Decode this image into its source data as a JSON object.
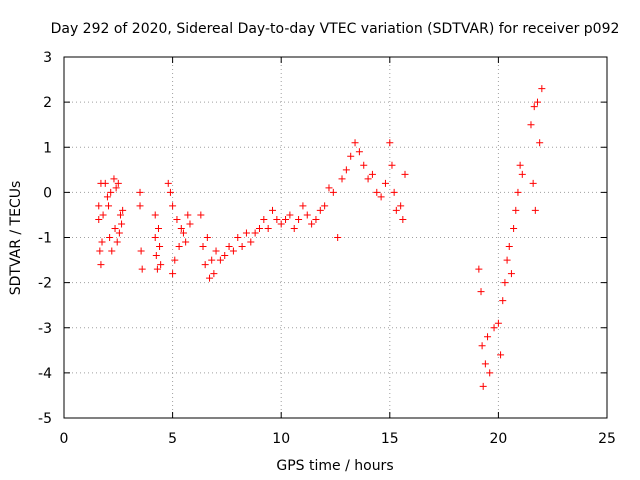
{
  "chart_data": {
    "type": "scatter",
    "title": "Day 292 of 2020, Sidereal Day-to-day VTEC variation (SDTVAR) for receiver p092",
    "xlabel": "GPS time / hours",
    "ylabel": "SDTVAR / TECUs",
    "xlim": [
      0,
      25
    ],
    "ylim": [
      -5,
      3
    ],
    "xticks": [
      0,
      5,
      10,
      15,
      20,
      25
    ],
    "yticks": [
      -5,
      -4,
      -3,
      -2,
      -1,
      0,
      1,
      2,
      3
    ],
    "grid": true,
    "marker": "+",
    "color": "#ff0000",
    "series": [
      {
        "name": "SDTVAR",
        "points": [
          [
            1.6,
            -0.3
          ],
          [
            1.6,
            -0.6
          ],
          [
            1.65,
            -1.3
          ],
          [
            1.7,
            -1.6
          ],
          [
            1.7,
            0.2
          ],
          [
            1.75,
            -1.1
          ],
          [
            1.8,
            -0.5
          ],
          [
            1.9,
            0.2
          ],
          [
            2.0,
            -0.1
          ],
          [
            2.05,
            -0.3
          ],
          [
            2.1,
            -1.0
          ],
          [
            2.15,
            0.0
          ],
          [
            2.2,
            -1.3
          ],
          [
            2.3,
            0.3
          ],
          [
            2.35,
            -0.8
          ],
          [
            2.4,
            0.1
          ],
          [
            2.45,
            -1.1
          ],
          [
            2.5,
            0.2
          ],
          [
            2.55,
            -0.9
          ],
          [
            2.6,
            -0.5
          ],
          [
            2.65,
            -0.7
          ],
          [
            2.7,
            -0.4
          ],
          [
            3.5,
            0.0
          ],
          [
            3.55,
            -1.3
          ],
          [
            3.6,
            -1.7
          ],
          [
            3.5,
            -0.3
          ],
          [
            4.2,
            -0.5
          ],
          [
            4.2,
            -1.0
          ],
          [
            4.25,
            -1.4
          ],
          [
            4.3,
            -1.7
          ],
          [
            4.35,
            -0.8
          ],
          [
            4.4,
            -1.2
          ],
          [
            4.45,
            -1.6
          ],
          [
            4.8,
            0.2
          ],
          [
            4.9,
            0.0
          ],
          [
            5.0,
            -0.3
          ],
          [
            5.0,
            -1.8
          ],
          [
            5.1,
            -1.5
          ],
          [
            5.2,
            -0.6
          ],
          [
            5.3,
            -1.2
          ],
          [
            5.4,
            -0.8
          ],
          [
            5.5,
            -0.9
          ],
          [
            5.6,
            -1.1
          ],
          [
            5.7,
            -0.5
          ],
          [
            5.8,
            -0.7
          ],
          [
            6.3,
            -0.5
          ],
          [
            6.4,
            -1.2
          ],
          [
            6.5,
            -1.6
          ],
          [
            6.6,
            -1.0
          ],
          [
            6.7,
            -1.9
          ],
          [
            6.8,
            -1.5
          ],
          [
            6.9,
            -1.8
          ],
          [
            7.0,
            -1.3
          ],
          [
            7.2,
            -1.5
          ],
          [
            7.4,
            -1.4
          ],
          [
            7.6,
            -1.2
          ],
          [
            7.8,
            -1.3
          ],
          [
            8.0,
            -1.0
          ],
          [
            8.2,
            -1.2
          ],
          [
            8.4,
            -0.9
          ],
          [
            8.6,
            -1.1
          ],
          [
            8.8,
            -0.9
          ],
          [
            9.0,
            -0.8
          ],
          [
            9.2,
            -0.6
          ],
          [
            9.4,
            -0.8
          ],
          [
            9.6,
            -0.4
          ],
          [
            9.8,
            -0.6
          ],
          [
            10.0,
            -0.7
          ],
          [
            10.2,
            -0.6
          ],
          [
            10.4,
            -0.5
          ],
          [
            10.6,
            -0.8
          ],
          [
            10.8,
            -0.6
          ],
          [
            11.0,
            -0.3
          ],
          [
            11.2,
            -0.5
          ],
          [
            11.4,
            -0.7
          ],
          [
            11.6,
            -0.6
          ],
          [
            11.8,
            -0.4
          ],
          [
            12.0,
            -0.3
          ],
          [
            12.2,
            0.1
          ],
          [
            12.4,
            0.0
          ],
          [
            12.6,
            -1.0
          ],
          [
            12.8,
            0.3
          ],
          [
            13.0,
            0.5
          ],
          [
            13.2,
            0.8
          ],
          [
            13.4,
            1.1
          ],
          [
            13.6,
            0.9
          ],
          [
            13.8,
            0.6
          ],
          [
            14.0,
            0.3
          ],
          [
            14.2,
            0.4
          ],
          [
            14.4,
            0.0
          ],
          [
            14.6,
            -0.1
          ],
          [
            14.8,
            0.2
          ],
          [
            15.0,
            1.1
          ],
          [
            15.1,
            0.6
          ],
          [
            15.2,
            0.0
          ],
          [
            15.3,
            -0.4
          ],
          [
            15.5,
            -0.3
          ],
          [
            15.6,
            -0.6
          ],
          [
            15.7,
            0.4
          ],
          [
            19.1,
            -1.7
          ],
          [
            19.2,
            -2.2
          ],
          [
            19.25,
            -3.4
          ],
          [
            19.3,
            -4.3
          ],
          [
            19.4,
            -3.8
          ],
          [
            19.5,
            -3.2
          ],
          [
            19.6,
            -4.0
          ],
          [
            19.8,
            -3.0
          ],
          [
            20.0,
            -2.9
          ],
          [
            20.1,
            -3.6
          ],
          [
            20.2,
            -2.4
          ],
          [
            20.3,
            -2.0
          ],
          [
            20.4,
            -1.5
          ],
          [
            20.5,
            -1.2
          ],
          [
            20.6,
            -1.8
          ],
          [
            20.7,
            -0.8
          ],
          [
            20.8,
            -0.4
          ],
          [
            20.9,
            0.0
          ],
          [
            21.0,
            0.6
          ],
          [
            21.1,
            0.4
          ],
          [
            21.5,
            1.5
          ],
          [
            21.6,
            0.2
          ],
          [
            21.65,
            1.9
          ],
          [
            21.7,
            -0.4
          ],
          [
            21.8,
            2.0
          ],
          [
            21.9,
            1.1
          ],
          [
            22.0,
            2.3
          ]
        ]
      }
    ]
  }
}
